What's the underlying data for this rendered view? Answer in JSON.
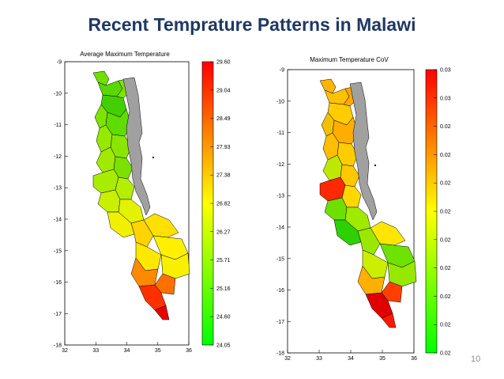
{
  "slide": {
    "title": "Recent Temprature Patterns in Malawi",
    "page_number": "10"
  },
  "maps": [
    {
      "id": "avg-max",
      "title": "Average Maximum Temperature",
      "x_ticks": [
        "32",
        "33",
        "34",
        "35",
        "36"
      ],
      "y_ticks": [
        "-9",
        "-10",
        "-11",
        "-12",
        "-13",
        "-14",
        "-15",
        "-16",
        "-17",
        "-18"
      ],
      "colorbar_labels": [
        "29.60",
        "29.04",
        "28.49",
        "27.93",
        "27.38",
        "26.82",
        "26.27",
        "25.71",
        "25.16",
        "24.60",
        "24.05"
      ],
      "colorbar_colors": [
        "#ff0000",
        "#ffff00",
        "#00ff00"
      ],
      "region_fill_sequence": [
        "#6fe000",
        "#58d800",
        "#80e400",
        "#44d000",
        "#7de300",
        "#5fdc00",
        "#96e800",
        "#8ae600",
        "#9fea00",
        "#7be200",
        "#a8ec00",
        "#b4ee00",
        "#c8f000",
        "#e2f200",
        "#f0f000",
        "#ffe000",
        "#ffd400",
        "#fff000",
        "#ffe800",
        "#f7f000",
        "#ff8a00",
        "#ff7000",
        "#ff3000",
        "#e80000"
      ]
    },
    {
      "id": "max-cov",
      "title": "Maximum Temperature CoV",
      "x_ticks": [
        "32",
        "33",
        "34",
        "35",
        "36"
      ],
      "y_ticks": [
        "-9",
        "-10",
        "-11",
        "-12",
        "-13",
        "-14",
        "-15",
        "-16",
        "-17",
        "-18"
      ],
      "colorbar_labels": [
        "0.03",
        "0.03",
        "0.02",
        "0.02",
        "0.02",
        "0.02",
        "0.02",
        "0.02",
        "0.02",
        "0.02",
        "0.02"
      ],
      "colorbar_colors": [
        "#ff0000",
        "#ffff00",
        "#00ff00"
      ],
      "region_fill_sequence": [
        "#ffb400",
        "#ffc000",
        "#ffa800",
        "#ffcc00",
        "#f2c000",
        "#ffae00",
        "#ffbe00",
        "#ffcc00",
        "#bfe800",
        "#ffc800",
        "#ff2800",
        "#ffd800",
        "#6ee000",
        "#a0ea00",
        "#2ed000",
        "#ffe600",
        "#9ae800",
        "#6ee200",
        "#ccee00",
        "#96e800",
        "#ffb000",
        "#ff4000",
        "#e00000",
        "#ff1800"
      ]
    }
  ],
  "lake_color": "#a0a0a0"
}
